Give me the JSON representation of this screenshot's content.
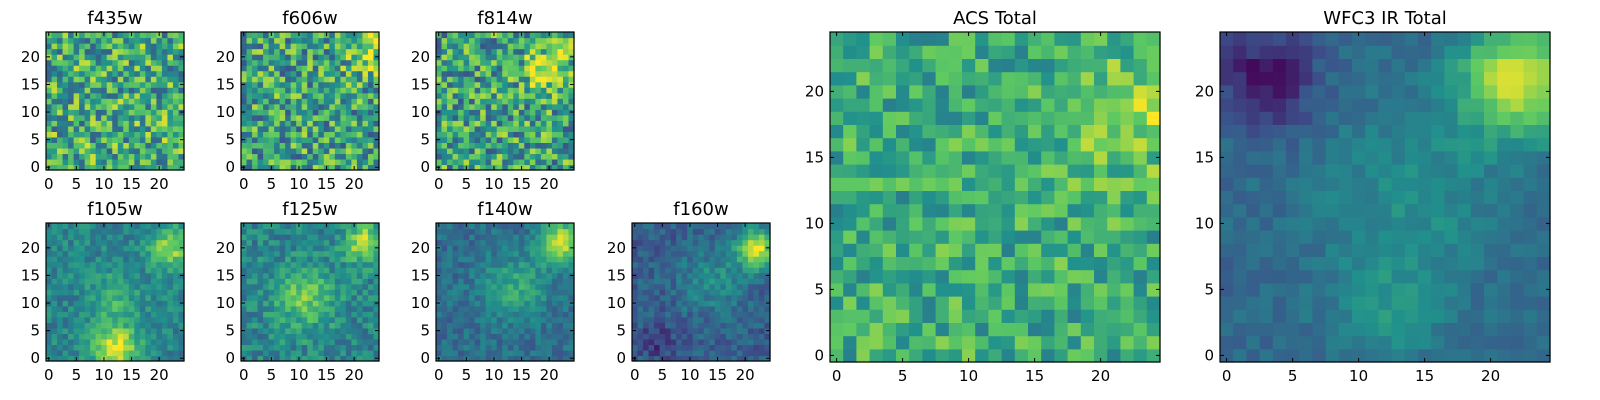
{
  "figure": {
    "colormap": "viridis",
    "colormap_stops": [
      "#440154",
      "#3b528b",
      "#21918c",
      "#5ec962",
      "#fde725"
    ]
  },
  "chart_data": [
    {
      "id": "f435w",
      "type": "heatmap",
      "title": "f435w",
      "grid": [
        25,
        25
      ],
      "xlim": [
        0,
        24
      ],
      "ylim": [
        0,
        24
      ],
      "xticks": [
        0,
        5,
        10,
        15,
        20
      ],
      "yticks": [
        0,
        5,
        10,
        15,
        20
      ],
      "mean": 0.62,
      "noise": 0.32,
      "seed": 11,
      "features": []
    },
    {
      "id": "f606w",
      "type": "heatmap",
      "title": "f606w",
      "grid": [
        25,
        25
      ],
      "xlim": [
        0,
        24
      ],
      "ylim": [
        0,
        24
      ],
      "xticks": [
        0,
        5,
        10,
        15,
        20
      ],
      "yticks": [
        0,
        5,
        10,
        15,
        20
      ],
      "mean": 0.58,
      "noise": 0.32,
      "seed": 23,
      "features": [
        {
          "x": 22,
          "y": 21,
          "sigma": 2.5,
          "amp": 0.3
        }
      ]
    },
    {
      "id": "f814w",
      "type": "heatmap",
      "title": "f814w",
      "grid": [
        25,
        25
      ],
      "xlim": [
        0,
        24
      ],
      "ylim": [
        0,
        24
      ],
      "xticks": [
        0,
        5,
        10,
        15,
        20
      ],
      "yticks": [
        0,
        5,
        10,
        15,
        20
      ],
      "mean": 0.58,
      "noise": 0.32,
      "seed": 37,
      "features": [
        {
          "x": 20,
          "y": 18,
          "sigma": 3,
          "amp": 0.3
        }
      ]
    },
    {
      "id": "f105w",
      "type": "heatmap",
      "title": "f105w",
      "grid": [
        25,
        25
      ],
      "xlim": [
        0,
        24
      ],
      "ylim": [
        0,
        24
      ],
      "xticks": [
        0,
        5,
        10,
        15,
        20
      ],
      "yticks": [
        0,
        5,
        10,
        15,
        20
      ],
      "mean": 0.45,
      "noise": 0.12,
      "seed": 41,
      "features": [
        {
          "x": 12,
          "y": 2,
          "sigma": 3,
          "amp": 0.5
        },
        {
          "x": 22,
          "y": 20,
          "sigma": 2.5,
          "amp": 0.4
        },
        {
          "x": 12,
          "y": 11,
          "sigma": 3,
          "amp": 0.2
        }
      ]
    },
    {
      "id": "f125w",
      "type": "heatmap",
      "title": "f125w",
      "grid": [
        25,
        25
      ],
      "xlim": [
        0,
        24
      ],
      "ylim": [
        0,
        24
      ],
      "xticks": [
        0,
        5,
        10,
        15,
        20
      ],
      "yticks": [
        0,
        5,
        10,
        15,
        20
      ],
      "mean": 0.45,
      "noise": 0.14,
      "seed": 53,
      "features": [
        {
          "x": 22,
          "y": 21,
          "sigma": 2.5,
          "amp": 0.45
        },
        {
          "x": 11,
          "y": 11,
          "sigma": 4,
          "amp": 0.3
        }
      ]
    },
    {
      "id": "f140w",
      "type": "heatmap",
      "title": "f140w",
      "grid": [
        25,
        25
      ],
      "xlim": [
        0,
        24
      ],
      "ylim": [
        0,
        24
      ],
      "xticks": [
        0,
        5,
        10,
        15,
        20
      ],
      "yticks": [
        0,
        5,
        10,
        15,
        20
      ],
      "mean": 0.36,
      "noise": 0.1,
      "seed": 67,
      "features": [
        {
          "x": 22,
          "y": 21,
          "sigma": 2.5,
          "amp": 0.6
        },
        {
          "x": 14,
          "y": 13,
          "sigma": 4,
          "amp": 0.25
        }
      ]
    },
    {
      "id": "f160w",
      "type": "heatmap",
      "title": "f160w",
      "grid": [
        25,
        25
      ],
      "xlim": [
        0,
        24
      ],
      "ylim": [
        0,
        24
      ],
      "xticks": [
        0,
        5,
        10,
        15,
        20
      ],
      "yticks": [
        0,
        5,
        10,
        15,
        20
      ],
      "mean": 0.3,
      "noise": 0.1,
      "seed": 79,
      "features": [
        {
          "x": 22,
          "y": 20,
          "sigma": 2.5,
          "amp": 0.65
        },
        {
          "x": 14,
          "y": 14,
          "sigma": 4,
          "amp": 0.2
        },
        {
          "x": 4,
          "y": 3,
          "sigma": 2,
          "amp": -0.15
        }
      ]
    },
    {
      "id": "acs_total",
      "type": "heatmap",
      "title": "ACS Total",
      "grid": [
        25,
        25
      ],
      "xlim": [
        0,
        24
      ],
      "ylim": [
        0,
        24
      ],
      "xticks": [
        0,
        5,
        10,
        15,
        20
      ],
      "yticks": [
        0,
        5,
        10,
        15,
        20
      ],
      "mean": 0.62,
      "noise": 0.2,
      "seed": 91,
      "features": [
        {
          "x": 22,
          "y": 18,
          "sigma": 3,
          "amp": 0.25
        }
      ]
    },
    {
      "id": "wfc3_ir_total",
      "type": "heatmap",
      "title": "WFC3 IR Total",
      "grid": [
        25,
        25
      ],
      "xlim": [
        0,
        24
      ],
      "ylim": [
        0,
        24
      ],
      "xticks": [
        0,
        5,
        10,
        15,
        20
      ],
      "yticks": [
        0,
        5,
        10,
        15,
        20
      ],
      "mean": 0.34,
      "noise": 0.06,
      "seed": 103,
      "features": [
        {
          "x": 22,
          "y": 21,
          "sigma": 3,
          "amp": 0.6
        },
        {
          "x": 14,
          "y": 12,
          "sigma": 5,
          "amp": 0.15
        },
        {
          "x": 12,
          "y": 3,
          "sigma": 3,
          "amp": 0.15
        },
        {
          "x": 3,
          "y": 21,
          "sigma": 2.5,
          "amp": -0.3
        }
      ]
    }
  ]
}
